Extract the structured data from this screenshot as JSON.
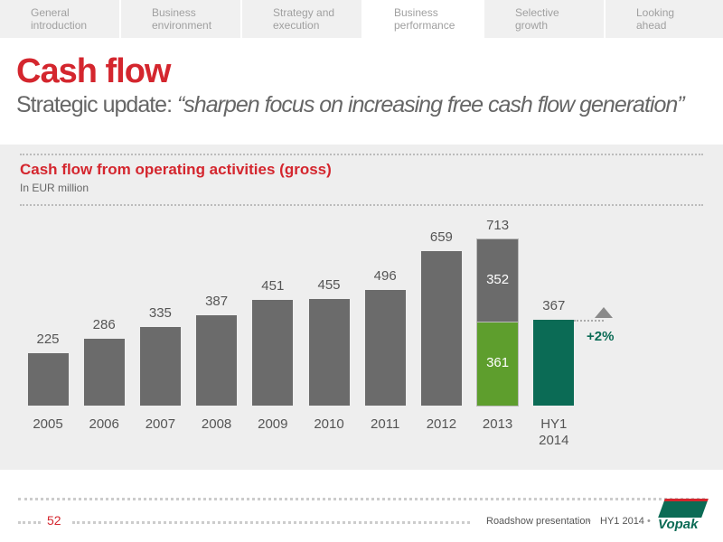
{
  "tabs": [
    "General\nintroduction",
    "Business\nenvironment",
    "Strategy and\nexecution",
    "Business\nperformance",
    "Selective\ngrowth",
    "Looking\nahead"
  ],
  "active_tab": 3,
  "title": "Cash flow",
  "subtitle": {
    "lead": "Strategic update: ",
    "quote": "“sharpen focus on increasing free cash flow generation”"
  },
  "chart_data": {
    "type": "bar",
    "stacked": true,
    "title": "Cash flow from operating activities (gross)",
    "subtitle": "In EUR million",
    "categories": [
      "2005",
      "2006",
      "2007",
      "2008",
      "2009",
      "2010",
      "2011",
      "2012",
      "2013",
      "HY1\n2014"
    ],
    "series": [
      {
        "color": "#5e9e2d",
        "values": [
          null,
          null,
          null,
          null,
          null,
          null,
          null,
          null,
          361,
          null
        ]
      },
      {
        "color": "#6b6b6b",
        "values": [
          225,
          286,
          335,
          387,
          451,
          455,
          496,
          659,
          352,
          null
        ]
      },
      {
        "color": "#0b6b55",
        "values": [
          null,
          null,
          null,
          null,
          null,
          null,
          null,
          null,
          null,
          367
        ]
      }
    ],
    "totals": [
      {
        "category": "2013",
        "value": 713
      }
    ],
    "annotation": "+2%",
    "ylim": [
      0,
      800
    ]
  },
  "footer": {
    "page": "52",
    "left": "Roadshow presentation",
    "right": "HY1 2014",
    "logo": "Vopak"
  }
}
